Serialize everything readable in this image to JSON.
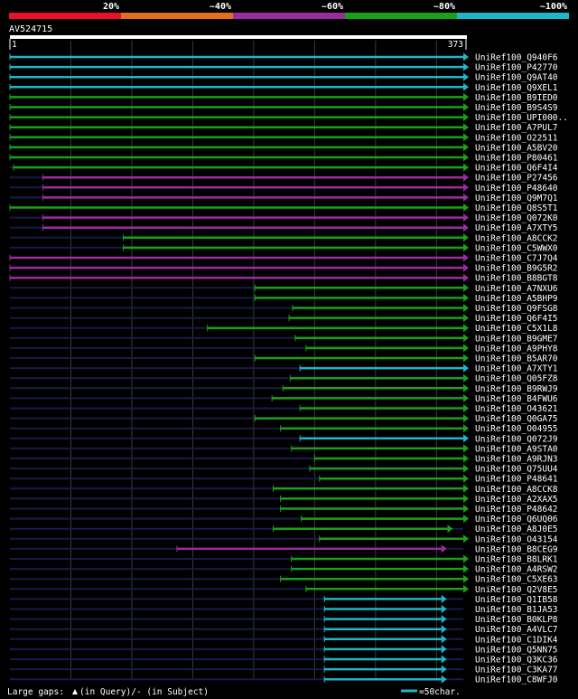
{
  "legend": {
    "bands": [
      {
        "label": "20%",
        "color": "#e8102a"
      },
      {
        "label": "~40%",
        "color": "#e26f1e"
      },
      {
        "label": "~60%",
        "color": "#9b2c9f"
      },
      {
        "label": "~80%",
        "color": "#1aa01a"
      },
      {
        "label": "~100%",
        "color": "#1fb6c9"
      }
    ]
  },
  "query": {
    "name": "AV524715",
    "start": "1",
    "end": "373",
    "length": 373
  },
  "colors": {
    "purple": "#9b2c9f",
    "green": "#1aa01a",
    "cyan": "#1fb6c9",
    "gap": "#ffff99",
    "base": "#1a1a4a"
  },
  "hits": [
    {
      "name": "UniRef100_Q940F6",
      "color": "cyan",
      "start": 1,
      "end": 373
    },
    {
      "name": "UniRef100_P42770",
      "color": "cyan",
      "start": 1,
      "end": 373
    },
    {
      "name": "UniRef100_Q9AT40",
      "color": "cyan",
      "start": 1,
      "end": 373
    },
    {
      "name": "UniRef100_Q9XEL1",
      "color": "cyan",
      "start": 1,
      "end": 373
    },
    {
      "name": "UniRef100_B9IED0",
      "color": "green",
      "start": 1,
      "end": 373
    },
    {
      "name": "UniRef100_B9S4S9",
      "color": "green",
      "start": 1,
      "end": 373
    },
    {
      "name": "UniRef100_UPI000..",
      "color": "green",
      "start": 1,
      "end": 373
    },
    {
      "name": "UniRef100_A7PUL7",
      "color": "green",
      "start": 1,
      "end": 373
    },
    {
      "name": "UniRef100_O22511",
      "color": "green",
      "start": 1,
      "end": 373
    },
    {
      "name": "UniRef100_A5BV20",
      "color": "green",
      "start": 1,
      "end": 373
    },
    {
      "name": "UniRef100_P80461",
      "color": "green",
      "start": 1,
      "end": 373
    },
    {
      "name": "UniRef100_Q6F4I4",
      "color": "green",
      "start": 4,
      "end": 373
    },
    {
      "name": "UniRef100_P27456",
      "color": "purple",
      "start": 28,
      "end": 373
    },
    {
      "name": "UniRef100_P48640",
      "color": "purple",
      "start": 28,
      "end": 373
    },
    {
      "name": "UniRef100_Q9M7Q1",
      "color": "purple",
      "start": 28,
      "end": 373
    },
    {
      "name": "UniRef100_Q8S5T1",
      "color": "green",
      "start": 1,
      "end": 373
    },
    {
      "name": "UniRef100_Q072K0",
      "color": "purple",
      "start": 28,
      "end": 373
    },
    {
      "name": "UniRef100_A7XTY5",
      "color": "purple",
      "start": 28,
      "end": 373
    },
    {
      "name": "UniRef100_A8CCK2",
      "color": "green",
      "start": 94,
      "end": 373
    },
    {
      "name": "UniRef100_C5WWX0",
      "color": "green",
      "start": 94,
      "end": 373
    },
    {
      "name": "UniRef100_C7J7Q4",
      "color": "purple",
      "start": 1,
      "end": 373
    },
    {
      "name": "UniRef100_B9G5R2",
      "color": "purple",
      "start": 1,
      "end": 373
    },
    {
      "name": "UniRef100_B8BGT8",
      "color": "purple",
      "start": 1,
      "end": 373
    },
    {
      "name": "UniRef100_A7NXU6",
      "color": "green",
      "start": 202,
      "end": 373
    },
    {
      "name": "UniRef100_A5BHP9",
      "color": "green",
      "start": 202,
      "end": 373
    },
    {
      "name": "UniRef100_Q9FSG8",
      "color": "green",
      "start": 233,
      "end": 373
    },
    {
      "name": "UniRef100_Q6F4I5",
      "color": "green",
      "start": 230,
      "end": 373
    },
    {
      "name": "UniRef100_C5X1L8",
      "color": "green",
      "start": 163,
      "end": 373
    },
    {
      "name": "UniRef100_B9GME7",
      "color": "green",
      "start": 235,
      "end": 373
    },
    {
      "name": "UniRef100_A9PHY8",
      "color": "green",
      "start": 244,
      "end": 373
    },
    {
      "name": "UniRef100_B5AR70",
      "color": "green",
      "start": 202,
      "end": 373
    },
    {
      "name": "UniRef100_A7XTY1",
      "color": "cyan",
      "start": 239,
      "end": 373
    },
    {
      "name": "UniRef100_Q05FZ8",
      "color": "green",
      "start": 231,
      "end": 373
    },
    {
      "name": "UniRef100_B9RWJ9",
      "color": "green",
      "start": 225,
      "end": 373
    },
    {
      "name": "UniRef100_B4FWU6",
      "color": "green",
      "start": 216,
      "end": 373
    },
    {
      "name": "UniRef100_O43621",
      "color": "green",
      "start": 239,
      "end": 373
    },
    {
      "name": "UniRef100_Q0GA75",
      "color": "green",
      "start": 202,
      "end": 373
    },
    {
      "name": "UniRef100_O04955",
      "color": "green",
      "start": 223,
      "end": 373
    },
    {
      "name": "UniRef100_Q072J9",
      "color": "cyan",
      "start": 239,
      "end": 373
    },
    {
      "name": "UniRef100_A9STA0",
      "color": "green",
      "start": 232,
      "end": 373
    },
    {
      "name": "UniRef100_A9RJN3",
      "color": "green",
      "start": 251,
      "end": 373
    },
    {
      "name": "UniRef100_Q75UU4",
      "color": "green",
      "start": 247,
      "end": 373
    },
    {
      "name": "UniRef100_P48641",
      "color": "green",
      "start": 255,
      "end": 373
    },
    {
      "name": "UniRef100_A8CCK8",
      "color": "green",
      "start": 217,
      "end": 373
    },
    {
      "name": "UniRef100_A2XAX5",
      "color": "green",
      "start": 223,
      "end": 373
    },
    {
      "name": "UniRef100_P48642",
      "color": "green",
      "start": 223,
      "end": 373
    },
    {
      "name": "UniRef100_Q6UQ06",
      "color": "green",
      "start": 240,
      "end": 373
    },
    {
      "name": "UniRef100_A8J0E5",
      "color": "green",
      "start": 217,
      "end": 360
    },
    {
      "name": "UniRef100_O43154",
      "color": "green",
      "start": 255,
      "end": 373
    },
    {
      "name": "UniRef100_B8CEG9",
      "color": "purple",
      "start": 138,
      "end": 355
    },
    {
      "name": "UniRef100_B8LRK1",
      "color": "green",
      "start": 232,
      "end": 373
    },
    {
      "name": "UniRef100_A4RSW2",
      "color": "green",
      "start": 232,
      "end": 373
    },
    {
      "name": "UniRef100_C5XE63",
      "color": "green",
      "start": 223,
      "end": 373
    },
    {
      "name": "UniRef100_Q2V8E5",
      "color": "green",
      "start": 244,
      "end": 373
    },
    {
      "name": "UniRef100_Q1IB58",
      "color": "cyan",
      "start": 259,
      "end": 355
    },
    {
      "name": "UniRef100_B1JA53",
      "color": "cyan",
      "start": 259,
      "end": 355
    },
    {
      "name": "UniRef100_B0KLP8",
      "color": "cyan",
      "start": 259,
      "end": 355
    },
    {
      "name": "UniRef100_A4VLC7",
      "color": "cyan",
      "start": 259,
      "end": 355
    },
    {
      "name": "UniRef100_C1DIK4",
      "color": "cyan",
      "start": 259,
      "end": 355
    },
    {
      "name": "UniRef100_Q5NN75",
      "color": "cyan",
      "start": 259,
      "end": 355
    },
    {
      "name": "UniRef100_Q3KC36",
      "color": "cyan",
      "start": 259,
      "end": 355
    },
    {
      "name": "UniRef100_C3KA77",
      "color": "cyan",
      "start": 259,
      "end": 355
    },
    {
      "name": "UniRef100_C8WFJ0",
      "color": "cyan",
      "start": 259,
      "end": 355
    }
  ],
  "footer": {
    "gaps_label": "Large gaps:",
    "gaps_desc": "(in Query)/- (in Subject)",
    "scale_label": "=50char."
  }
}
